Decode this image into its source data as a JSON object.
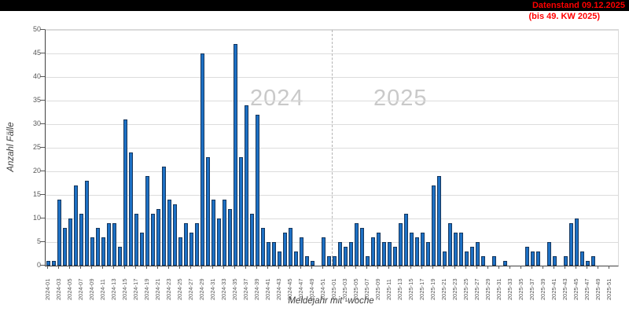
{
  "header": {
    "datenstand": "Datenstand 09.12.2025",
    "kw_note": "(bis 49. KW 2025)"
  },
  "chart_data": {
    "type": "bar",
    "title": "",
    "xlabel": "Meldejahr mit -woche",
    "ylabel": "Anzahl Fälle",
    "ylim": [
      0,
      50
    ],
    "y_ticks": [
      0,
      5,
      10,
      15,
      20,
      25,
      30,
      35,
      40,
      45,
      50
    ],
    "grid": true,
    "legend": "none",
    "bar_color": "#1d70c4",
    "bar_border_color": "#16365c",
    "watermark_color": "#c9c9c9",
    "accent_red": "#ff0000",
    "year_watermarks": [
      "2024",
      "2025"
    ],
    "separator_after_category": "2024-52",
    "categories": [
      "2024-01",
      "2024-02",
      "2024-03",
      "2024-04",
      "2024-05",
      "2024-06",
      "2024-07",
      "2024-08",
      "2024-09",
      "2024-10",
      "2024-11",
      "2024-12",
      "2024-13",
      "2024-14",
      "2024-15",
      "2024-16",
      "2024-17",
      "2024-18",
      "2024-19",
      "2024-20",
      "2024-21",
      "2024-22",
      "2024-23",
      "2024-24",
      "2024-25",
      "2024-26",
      "2024-27",
      "2024-28",
      "2024-29",
      "2024-30",
      "2024-31",
      "2024-32",
      "2024-33",
      "2024-34",
      "2024-35",
      "2024-36",
      "2024-37",
      "2024-38",
      "2024-39",
      "2024-40",
      "2024-41",
      "2024-42",
      "2024-43",
      "2024-44",
      "2024-45",
      "2024-46",
      "2024-47",
      "2024-48",
      "2024-49",
      "2024-50",
      "2024-51",
      "2024-52",
      "2025-01",
      "2025-02",
      "2025-03",
      "2025-04",
      "2025-05",
      "2025-06",
      "2025-07",
      "2025-08",
      "2025-09",
      "2025-10",
      "2025-11",
      "2025-12",
      "2025-13",
      "2025-14",
      "2025-15",
      "2025-16",
      "2025-17",
      "2025-18",
      "2025-19",
      "2025-20",
      "2025-21",
      "2025-22",
      "2025-23",
      "2025-24",
      "2025-25",
      "2025-26",
      "2025-27",
      "2025-28",
      "2025-29",
      "2025-30",
      "2025-31",
      "2025-32",
      "2025-33",
      "2025-34",
      "2025-35",
      "2025-36",
      "2025-37",
      "2025-38",
      "2025-39",
      "2025-40",
      "2025-41",
      "2025-42",
      "2025-43",
      "2025-44",
      "2025-45",
      "2025-46",
      "2025-47",
      "2025-48",
      "2025-49",
      "2025-50",
      "2025-51",
      "2025-52"
    ],
    "values": [
      1,
      1,
      14,
      8,
      10,
      17,
      11,
      18,
      6,
      8,
      6,
      9,
      9,
      4,
      31,
      24,
      11,
      7,
      19,
      11,
      12,
      21,
      14,
      13,
      6,
      9,
      7,
      9,
      45,
      23,
      14,
      10,
      14,
      12,
      47,
      23,
      34,
      11,
      32,
      8,
      5,
      5,
      3,
      7,
      8,
      3,
      6,
      2,
      1,
      0,
      6,
      2,
      2,
      5,
      4,
      5,
      9,
      8,
      2,
      6,
      7,
      5,
      5,
      4,
      9,
      11,
      7,
      6,
      7,
      5,
      17,
      19,
      3,
      9,
      7,
      7,
      3,
      4,
      5,
      2,
      0,
      2,
      0,
      1,
      0,
      0,
      0,
      4,
      3,
      3,
      0,
      5,
      2,
      0,
      2,
      9,
      10,
      3,
      1,
      2,
      0,
      0,
      0,
      0
    ]
  }
}
